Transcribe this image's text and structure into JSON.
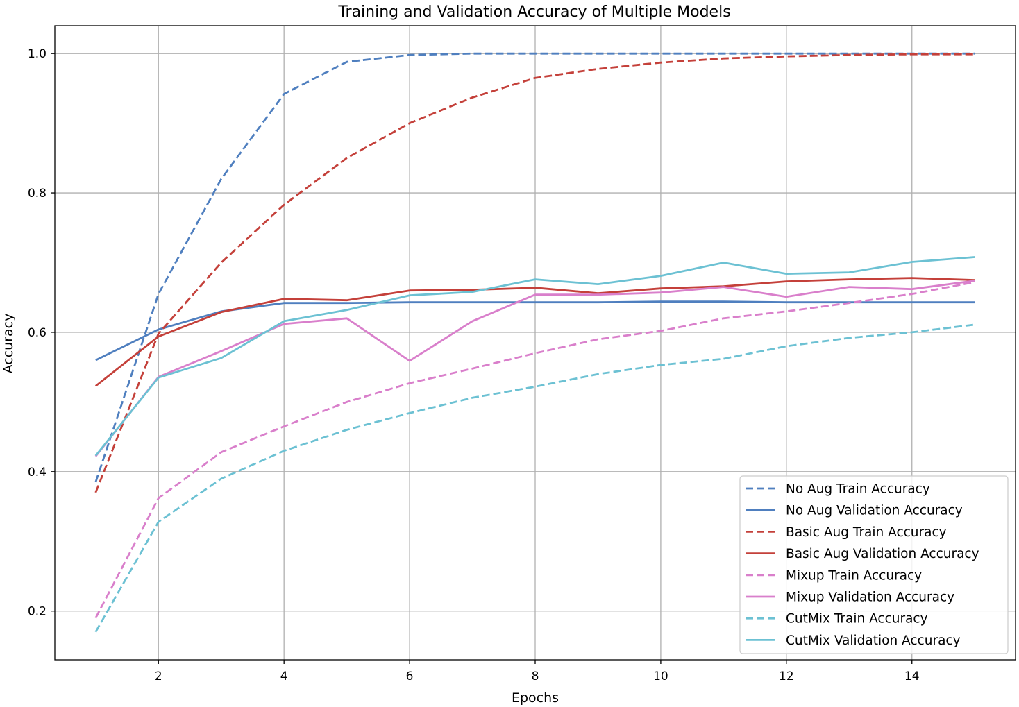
{
  "chart_data": {
    "type": "line",
    "title": "Training and Validation Accuracy of Multiple Models",
    "xlabel": "Epochs",
    "ylabel": "Accuracy",
    "xlim": [
      0.35,
      15.65
    ],
    "ylim": [
      0.13,
      1.04
    ],
    "xticks": [
      2,
      4,
      6,
      8,
      10,
      12,
      14
    ],
    "xtick_labels": [
      "2",
      "4",
      "6",
      "8",
      "10",
      "12",
      "14"
    ],
    "yticks": [
      0.2,
      0.4,
      0.6,
      0.8,
      1.0
    ],
    "ytick_labels": [
      "0.2",
      "0.4",
      "0.6",
      "0.8",
      "1.0"
    ],
    "grid": true,
    "legend_position": "bottom-right",
    "x": [
      1,
      2,
      3,
      4,
      5,
      6,
      7,
      8,
      9,
      10,
      11,
      12,
      13,
      14,
      15
    ],
    "series": [
      {
        "name": "No Aug Train Accuracy",
        "color": "#4f7fbf",
        "dash": "dashed",
        "values": [
          0.385,
          0.655,
          0.82,
          0.942,
          0.988,
          0.998,
          1.0,
          1.0,
          1.0,
          1.0,
          1.0,
          1.0,
          1.0,
          1.0,
          1.0
        ]
      },
      {
        "name": "No Aug Validation Accuracy",
        "color": "#4f7fbf",
        "dash": "solid",
        "values": [
          0.56,
          0.604,
          0.63,
          0.642,
          0.642,
          0.643,
          0.643,
          0.643,
          0.643,
          0.644,
          0.644,
          0.643,
          0.643,
          0.643,
          0.643
        ]
      },
      {
        "name": "Basic Aug Train Accuracy",
        "color": "#c4403a",
        "dash": "dashed",
        "values": [
          0.37,
          0.598,
          0.7,
          0.783,
          0.85,
          0.9,
          0.937,
          0.965,
          0.978,
          0.987,
          0.993,
          0.996,
          0.998,
          0.999,
          0.999
        ]
      },
      {
        "name": "Basic Aug Validation Accuracy",
        "color": "#c4403a",
        "dash": "solid",
        "values": [
          0.523,
          0.594,
          0.629,
          0.648,
          0.646,
          0.66,
          0.661,
          0.664,
          0.656,
          0.663,
          0.666,
          0.673,
          0.676,
          0.678,
          0.675
        ]
      },
      {
        "name": "Mixup Train Accuracy",
        "color": "#d97fcb",
        "dash": "dashed",
        "values": [
          0.19,
          0.362,
          0.428,
          0.465,
          0.5,
          0.527,
          0.548,
          0.57,
          0.59,
          0.602,
          0.62,
          0.63,
          0.642,
          0.655,
          0.672
        ]
      },
      {
        "name": "Mixup Validation Accuracy",
        "color": "#d97fcb",
        "dash": "solid",
        "values": [
          0.422,
          0.536,
          0.573,
          0.612,
          0.62,
          0.559,
          0.616,
          0.654,
          0.654,
          0.657,
          0.665,
          0.651,
          0.665,
          0.662,
          0.674
        ]
      },
      {
        "name": "CutMix Train Accuracy",
        "color": "#6cc1d3",
        "dash": "dashed",
        "values": [
          0.17,
          0.328,
          0.39,
          0.43,
          0.46,
          0.484,
          0.506,
          0.522,
          0.54,
          0.553,
          0.562,
          0.58,
          0.592,
          0.6,
          0.611
        ]
      },
      {
        "name": "CutMix Validation Accuracy",
        "color": "#6cc1d3",
        "dash": "solid",
        "values": [
          0.423,
          0.535,
          0.563,
          0.616,
          0.632,
          0.653,
          0.658,
          0.676,
          0.669,
          0.681,
          0.7,
          0.684,
          0.686,
          0.701,
          0.708
        ]
      }
    ]
  }
}
